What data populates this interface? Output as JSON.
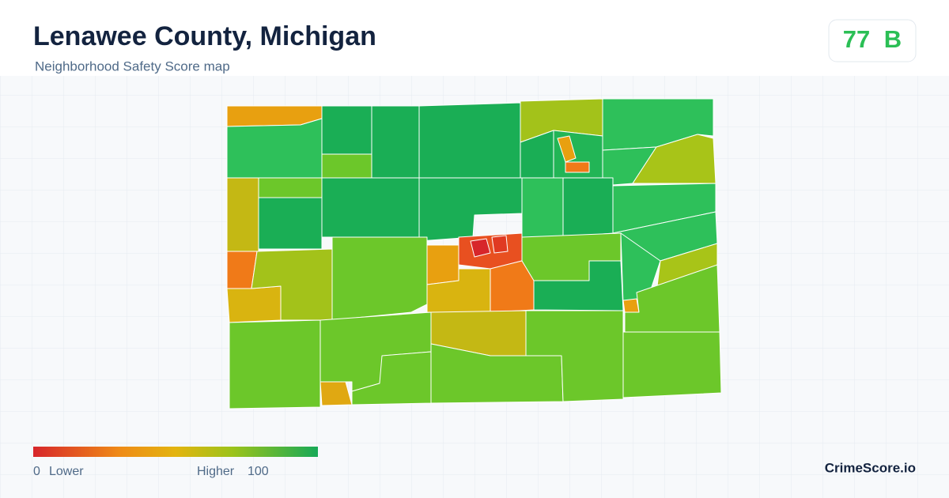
{
  "header": {
    "title": "Lenawee County, Michigan",
    "subtitle": "Neighborhood Safety Score map"
  },
  "score": {
    "value": 77,
    "grade": "B"
  },
  "legend": {
    "min": 0,
    "min_label": "Lower",
    "max_label": "Higher",
    "max": 100
  },
  "brand": "CrimeScore.io"
}
